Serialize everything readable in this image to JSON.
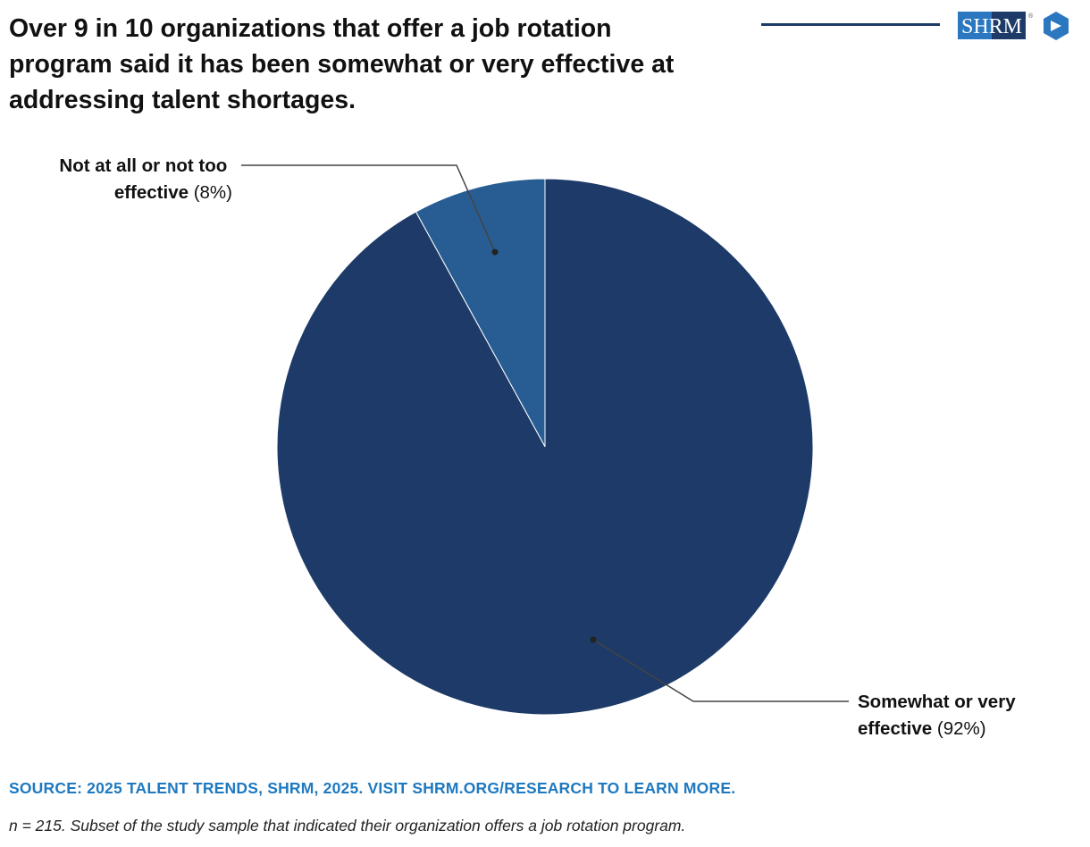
{
  "header": {
    "title_lines": [
      "Over 9 in 10 organizations that offer a job rotation",
      "program said it has been somewhat or very effective at",
      "addressing talent shortages."
    ],
    "logo_text": "SHRM",
    "logo_mark": "®"
  },
  "colors": {
    "accent_line": "#1d3a66",
    "slice_major": "#1d3a68",
    "slice_minor": "#275d93",
    "source_text": "#1e79c0",
    "logo_blue": "#2b77c0",
    "logo_dark": "#1d3a68"
  },
  "chart_data": {
    "type": "pie",
    "slices": [
      {
        "name": "Not at all or not too effective",
        "value": 8,
        "value_label": "(8%)"
      },
      {
        "name": "Somewhat or very effective",
        "value": 92,
        "value_label": "(92%)"
      }
    ],
    "labels": {
      "minor": {
        "bold_line1": "Not at all or not too",
        "bold_line2": "effective",
        "value": "(8%)"
      },
      "major": {
        "bold_line1": "Somewhat or very",
        "bold_line2": "effective",
        "value": "(92%)"
      }
    }
  },
  "footer": {
    "source": "SOURCE: 2025 TALENT TRENDS, SHRM, 2025. VISIT SHRM.ORG/RESEARCH TO LEARN MORE.",
    "note": "n = 215. Subset of the study sample that indicated their organization offers a job rotation program."
  }
}
